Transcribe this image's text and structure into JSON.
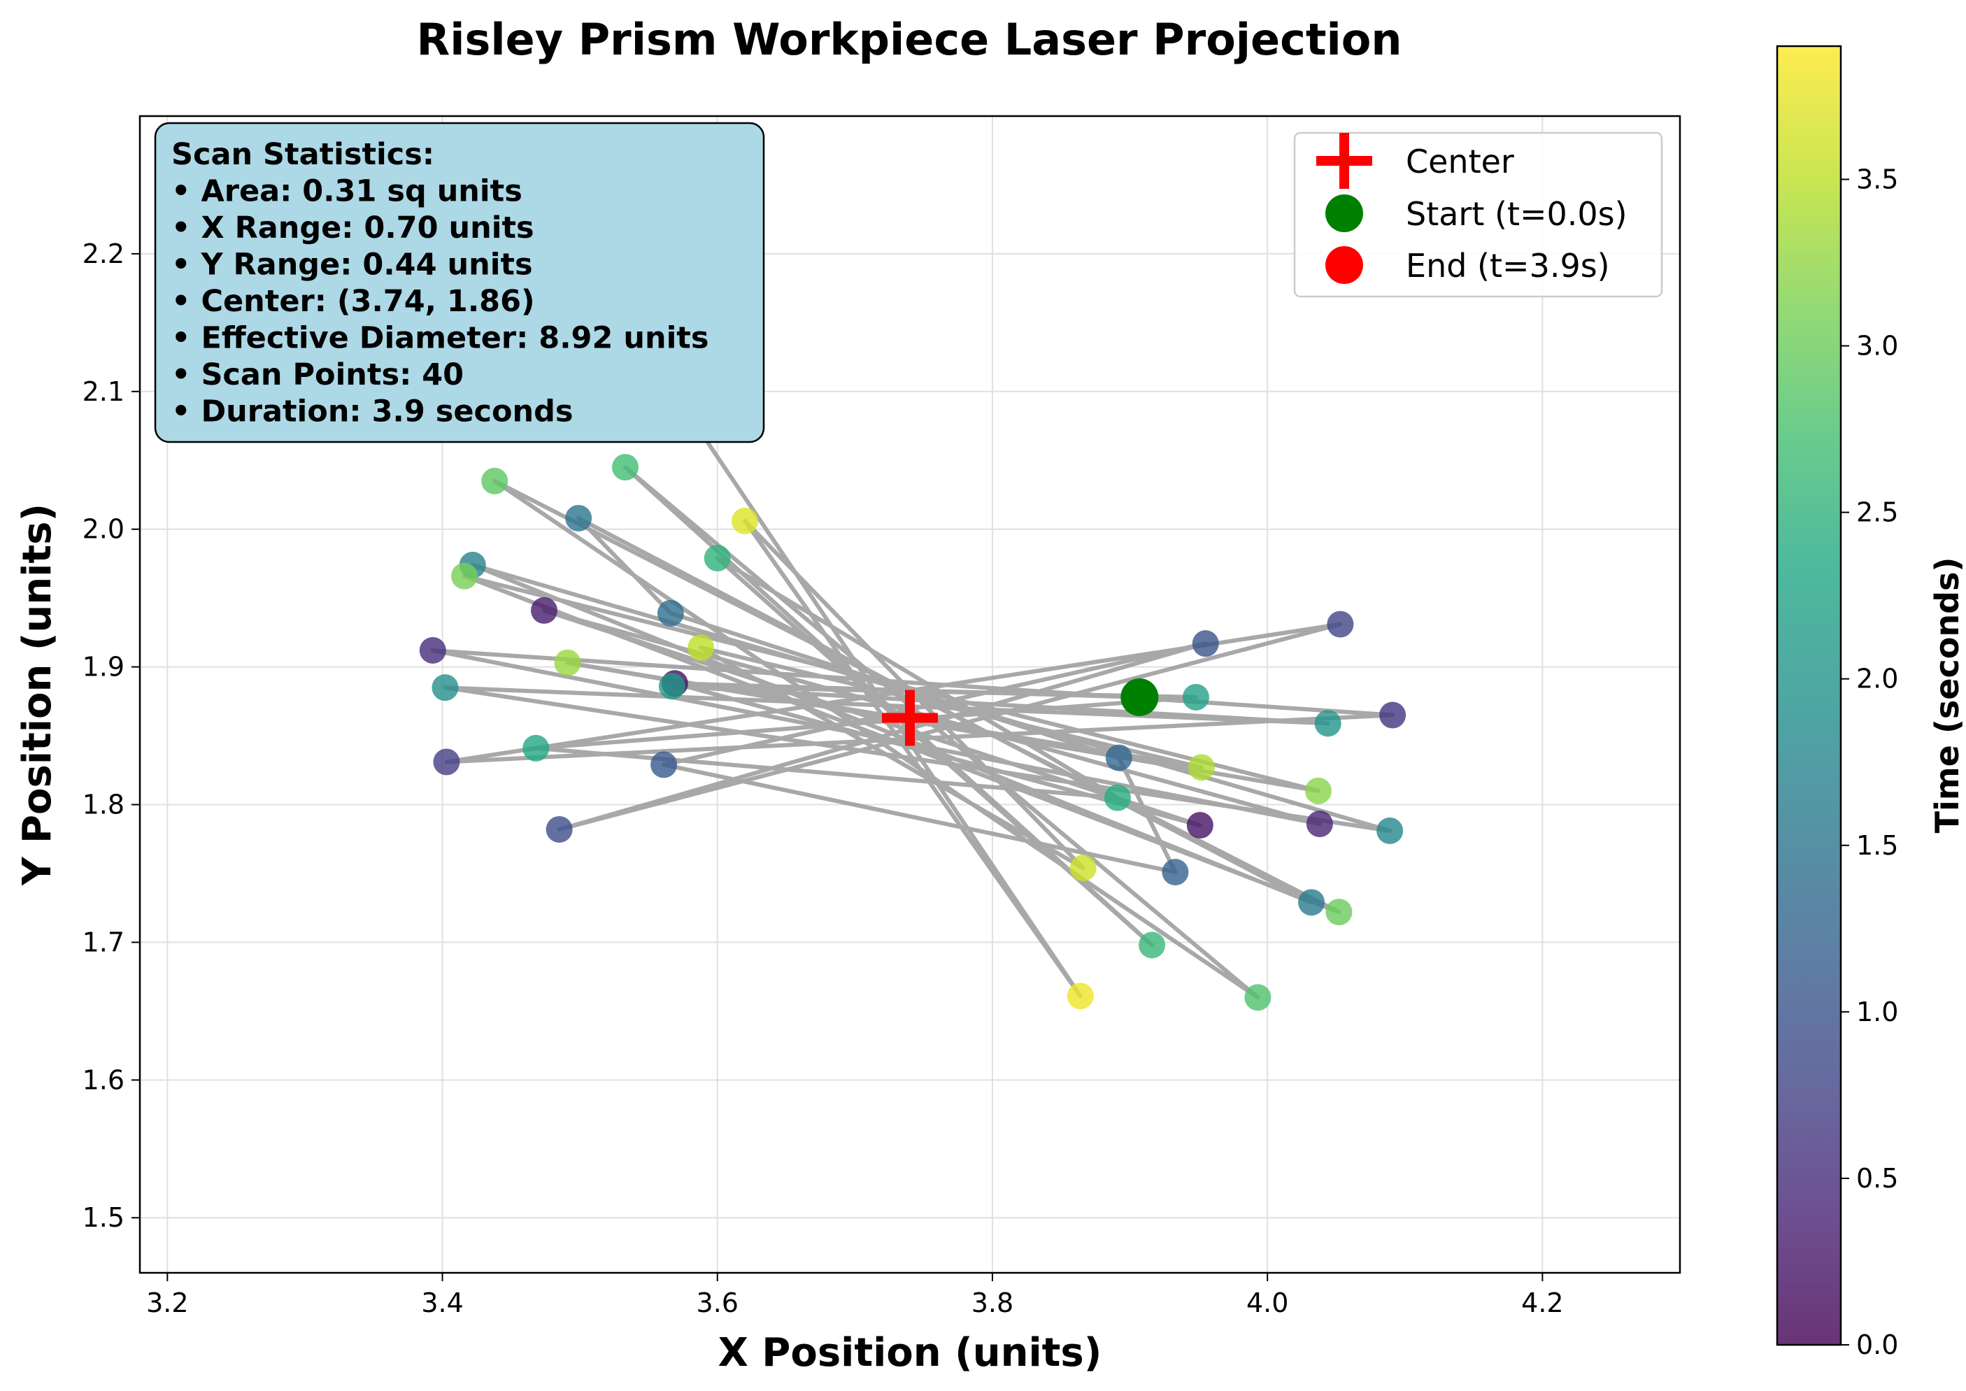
{
  "chart_data": {
    "type": "scatter",
    "title": "Risley Prism Workpiece Laser Projection",
    "xlabel": "X Position (units)",
    "ylabel": "Y Position (units)",
    "xlim": [
      3.18,
      4.3
    ],
    "ylim": [
      1.46,
      2.3
    ],
    "xticks": [
      3.2,
      3.4,
      3.6,
      3.8,
      4.0,
      4.2
    ],
    "xtick_labels": [
      "3.2",
      "3.4",
      "3.6",
      "3.8",
      "4.0",
      "4.2"
    ],
    "yticks": [
      1.5,
      1.6,
      1.7,
      1.8,
      1.9,
      2.0,
      2.1,
      2.2
    ],
    "ytick_labels": [
      "1.5",
      "1.6",
      "1.7",
      "1.8",
      "1.9",
      "2.0",
      "2.1",
      "2.2"
    ],
    "grid": true,
    "colorbar": {
      "label": "Time (seconds)",
      "range": [
        0.0,
        3.9
      ],
      "ticks": [
        0.0,
        0.5,
        1.0,
        1.5,
        2.0,
        2.5,
        3.0,
        3.5
      ],
      "tick_labels": [
        "0.0",
        "0.5",
        "1.0",
        "1.5",
        "2.0",
        "2.5",
        "3.0",
        "3.5"
      ],
      "colormap": "viridis"
    },
    "center": {
      "x": 3.74,
      "y": 1.863,
      "label": "Center",
      "color": "#ff0000"
    },
    "start": {
      "x": 3.907,
      "y": 1.878,
      "label": "Start (t=0.0s)",
      "color": "#008000"
    },
    "end": {
      "x": 3.568,
      "y": 2.1,
      "label": "End (t=3.9s)",
      "color": "#ff0000"
    },
    "legend_position": "top-right",
    "path_color": "#999999",
    "points": [
      {
        "t": 0.0,
        "x": 3.907,
        "y": 1.878
      },
      {
        "t": 0.1,
        "x": 3.569,
        "y": 1.888
      },
      {
        "t": 0.2,
        "x": 3.951,
        "y": 1.785
      },
      {
        "t": 0.3,
        "x": 3.474,
        "y": 1.941
      },
      {
        "t": 0.4,
        "x": 4.038,
        "y": 1.786
      },
      {
        "t": 0.5,
        "x": 3.393,
        "y": 1.912
      },
      {
        "t": 0.6,
        "x": 4.091,
        "y": 1.865
      },
      {
        "t": 0.7,
        "x": 3.403,
        "y": 1.831
      },
      {
        "t": 0.8,
        "x": 4.053,
        "y": 1.931
      },
      {
        "t": 0.9,
        "x": 3.485,
        "y": 1.782
      },
      {
        "t": 1.0,
        "x": 3.955,
        "y": 1.917
      },
      {
        "t": 1.1,
        "x": 3.561,
        "y": 1.829
      },
      {
        "t": 1.2,
        "x": 3.933,
        "y": 1.751
      },
      {
        "t": 1.3,
        "x": 3.892,
        "y": 1.834
      },
      {
        "t": 1.4,
        "x": 3.566,
        "y": 1.939
      },
      {
        "t": 1.5,
        "x": 3.499,
        "y": 2.008
      },
      {
        "t": 1.6,
        "x": 4.032,
        "y": 1.729
      },
      {
        "t": 1.7,
        "x": 3.422,
        "y": 1.974
      },
      {
        "t": 1.8,
        "x": 4.089,
        "y": 1.781
      },
      {
        "t": 1.9,
        "x": 3.402,
        "y": 1.885
      },
      {
        "t": 2.0,
        "x": 4.044,
        "y": 1.859
      },
      {
        "t": 2.1,
        "x": 3.567,
        "y": 1.886
      },
      {
        "t": 2.2,
        "x": 3.948,
        "y": 1.878
      },
      {
        "t": 2.3,
        "x": 3.468,
        "y": 1.841
      },
      {
        "t": 2.4,
        "x": 3.891,
        "y": 1.805
      },
      {
        "t": 2.5,
        "x": 3.6,
        "y": 1.979
      },
      {
        "t": 2.6,
        "x": 3.916,
        "y": 1.698
      },
      {
        "t": 2.7,
        "x": 3.533,
        "y": 2.045
      },
      {
        "t": 2.8,
        "x": 3.993,
        "y": 1.66
      },
      {
        "t": 2.9,
        "x": 3.438,
        "y": 2.035
      },
      {
        "t": 3.0,
        "x": 4.052,
        "y": 1.722
      },
      {
        "t": 3.1,
        "x": 3.416,
        "y": 1.966
      },
      {
        "t": 3.2,
        "x": 4.037,
        "y": 1.81
      },
      {
        "t": 3.3,
        "x": 3.491,
        "y": 1.903
      },
      {
        "t": 3.4,
        "x": 3.952,
        "y": 1.827
      },
      {
        "t": 3.5,
        "x": 3.588,
        "y": 1.914
      },
      {
        "t": 3.6,
        "x": 3.866,
        "y": 1.754
      },
      {
        "t": 3.7,
        "x": 3.62,
        "y": 2.006
      },
      {
        "t": 3.8,
        "x": 3.864,
        "y": 1.661
      },
      {
        "t": 3.9,
        "x": 3.568,
        "y": 2.1
      }
    ]
  },
  "stats": {
    "lines": [
      "Scan Statistics:",
      "• Area: 0.31 sq units",
      "• X Range: 0.70 units",
      "• Y Range: 0.44 units",
      "• Center: (3.74, 1.86)",
      "• Effective Diameter: 8.92 units",
      "• Scan Points: 40",
      "• Duration: 3.9 seconds"
    ],
    "background": "#add8e6"
  }
}
